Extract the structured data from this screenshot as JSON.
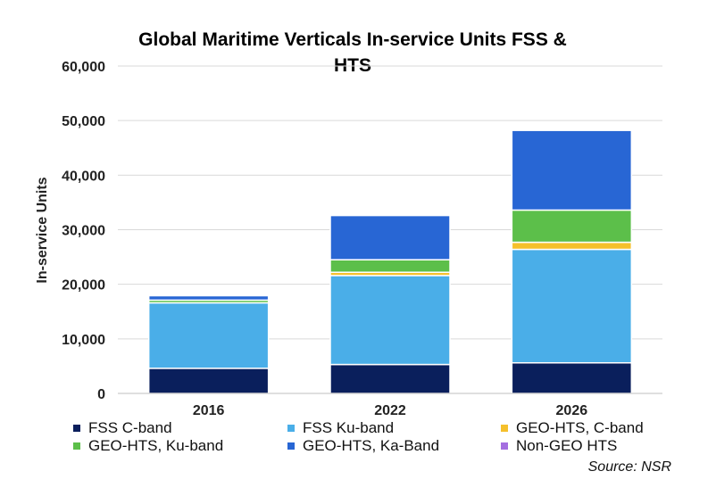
{
  "chart_data": {
    "type": "bar",
    "stacked": true,
    "title_lines": [
      "Global Maritime Verticals In-service Units FSS &",
      "HTS"
    ],
    "xlabel": "",
    "ylabel": "In-service Units",
    "ylim": [
      0,
      60000
    ],
    "yticks": [
      "0",
      "10,000",
      "20,000",
      "30,000",
      "40,000",
      "50,000",
      "60,000"
    ],
    "categories": [
      "2016",
      "2022",
      "2026"
    ],
    "grid": true,
    "legend_position": "bottom",
    "source": "Source: NSR",
    "series": [
      {
        "name": "FSS C-band",
        "color": "#0a1f5c",
        "values": [
          4600,
          5300,
          5600
        ]
      },
      {
        "name": "FSS Ku-band",
        "color": "#4aaee8",
        "values": [
          12000,
          16300,
          20800
        ]
      },
      {
        "name": "GEO-HTS, C-band",
        "color": "#f5c02c",
        "values": [
          0,
          600,
          1300
        ]
      },
      {
        "name": "GEO-HTS, Ku-band",
        "color": "#5cbf4a",
        "values": [
          500,
          2300,
          5900
        ]
      },
      {
        "name": "GEO-HTS, Ka-Band",
        "color": "#2866d4",
        "values": [
          800,
          8100,
          14600
        ]
      },
      {
        "name": "Non-GEO HTS",
        "color": "#a46ee0",
        "values": [
          0,
          0,
          0
        ]
      }
    ]
  }
}
